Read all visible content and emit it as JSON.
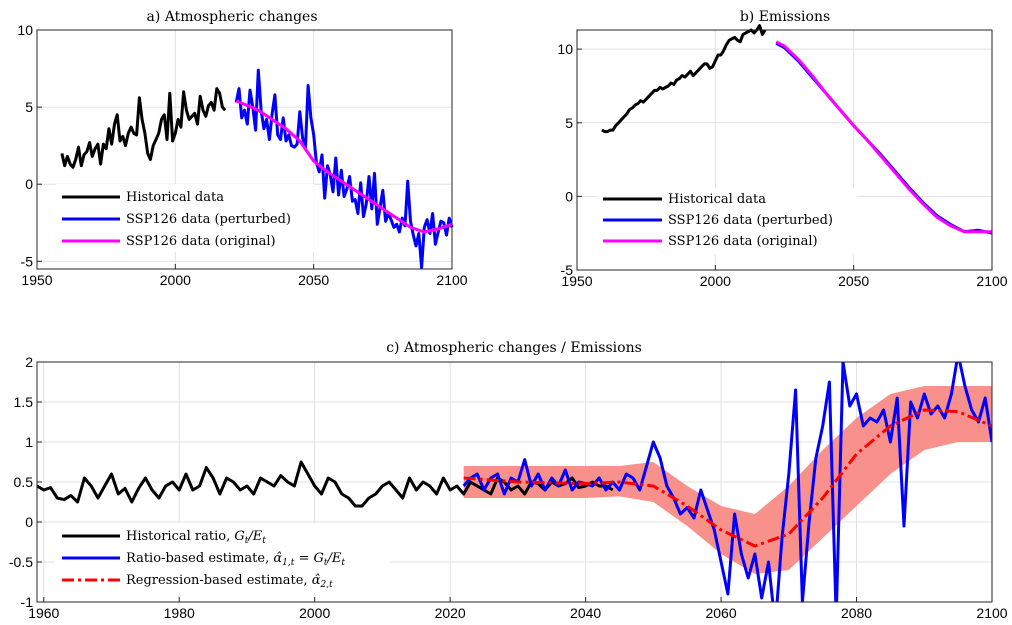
{
  "chart_data": [
    {
      "id": "a",
      "type": "line",
      "title": "a) Atmospheric changes",
      "xlim": [
        1950,
        2100
      ],
      "ylim": [
        -5.5,
        10
      ],
      "xticks": [
        1950,
        2000,
        2050,
        2100
      ],
      "yticks": [
        -5,
        0,
        5,
        10
      ],
      "grid": true,
      "legend_position": "bottom-left",
      "series": [
        {
          "name": "Historical data",
          "color": "#000000",
          "x_start": 1959,
          "values": [
            2.0,
            1.2,
            1.8,
            1.3,
            1.1,
            1.6,
            2.4,
            1.2,
            1.9,
            2.1,
            2.7,
            1.8,
            2.3,
            2.6,
            1.3,
            2.6,
            2.3,
            3.6,
            2.6,
            3.9,
            4.5,
            2.8,
            3.1,
            2.5,
            3.3,
            3.7,
            3.3,
            3.2,
            5.6,
            4.2,
            3.3,
            2.0,
            1.6,
            2.5,
            2.9,
            3.3,
            4.2,
            4.5,
            2.9,
            5.9,
            2.8,
            3.3,
            4.2,
            3.7,
            6.0,
            4.8,
            4.2,
            4.4,
            4.6,
            3.9,
            5.7,
            4.8,
            4.4,
            5.1,
            5.3,
            4.8,
            6.2,
            5.9,
            5.0,
            4.8
          ]
        },
        {
          "name": "SSP126 data (perturbed)",
          "color": "#0000ff",
          "x_start": 2022,
          "values": [
            5.3,
            6.2,
            4.3,
            4.8,
            3.9,
            6.1,
            5.0,
            3.5,
            7.4,
            4.8,
            3.6,
            4.2,
            2.9,
            4.6,
            5.8,
            3.2,
            2.9,
            4.3,
            2.8,
            3.2,
            2.5,
            2.4,
            2.6,
            4.7,
            3.0,
            2.3,
            6.4,
            4.3,
            3.2,
            1.4,
            0.8,
            1.9,
            -0.9,
            1.2,
            0.6,
            -0.5,
            1.7,
            -0.7,
            0.9,
            -0.8,
            -0.3,
            0.5,
            -1.1,
            -1.0,
            -1.9,
            0.1,
            -2.1,
            -1.3,
            0.5,
            -1.6,
            0.7,
            -2.6,
            -1.5,
            -0.4,
            -2.4,
            -1.9,
            -2.3,
            -2.8,
            -2.6,
            -3.1,
            -2.2,
            -2.7,
            0.2,
            -2.4,
            -3.3,
            -4.0,
            -3.2,
            -5.4,
            -2.8,
            -2.3,
            -3.2,
            -1.9,
            -3.9,
            -3.1,
            -2.4,
            -2.5,
            -3.3,
            -2.2,
            -2.8
          ]
        },
        {
          "name": "SSP126 data (original)",
          "color": "#ff00ff",
          "x": [
            2022,
            2030,
            2040,
            2045,
            2050,
            2055,
            2060,
            2065,
            2070,
            2075,
            2080,
            2085,
            2090,
            2095,
            2100
          ],
          "values": [
            5.4,
            4.8,
            3.6,
            2.8,
            1.5,
            0.8,
            0.2,
            -0.4,
            -1.0,
            -1.6,
            -2.2,
            -2.8,
            -3.1,
            -2.9,
            -2.6
          ]
        }
      ]
    },
    {
      "id": "b",
      "type": "line",
      "title": "b) Emissions",
      "xlim": [
        1950,
        2100
      ],
      "ylim": [
        -5,
        11.3
      ],
      "xticks": [
        1950,
        2000,
        2050,
        2100
      ],
      "yticks": [
        -5,
        0,
        5,
        10
      ],
      "grid": true,
      "legend_position": "bottom-left",
      "series": [
        {
          "name": "Historical data",
          "color": "#000000",
          "x_start": 1959,
          "values": [
            4.5,
            4.4,
            4.4,
            4.5,
            4.5,
            4.8,
            5.0,
            5.2,
            5.4,
            5.6,
            5.9,
            6.0,
            6.2,
            6.3,
            6.5,
            6.4,
            6.6,
            6.8,
            7.0,
            7.2,
            7.2,
            7.4,
            7.3,
            7.4,
            7.5,
            7.7,
            7.6,
            7.9,
            8.0,
            8.2,
            8.1,
            8.3,
            8.5,
            8.2,
            8.4,
            8.6,
            8.8,
            9.0,
            9.0,
            8.7,
            8.8,
            9.2,
            9.6,
            9.6,
            9.9,
            10.3,
            10.6,
            10.7,
            10.8,
            10.6,
            10.5,
            11.0,
            11.1,
            11.2,
            11.3,
            11.1,
            11.3,
            11.6,
            11.0,
            11.3
          ]
        },
        {
          "name": "SSP126 data (perturbed)",
          "color": "#0000ff",
          "x": [
            2022,
            2025,
            2030,
            2035,
            2040,
            2045,
            2050,
            2055,
            2060,
            2065,
            2070,
            2075,
            2080,
            2085,
            2090,
            2095,
            2100
          ],
          "values": [
            10.4,
            10.1,
            9.2,
            8.1,
            7.0,
            5.9,
            4.8,
            3.8,
            2.8,
            1.7,
            0.6,
            -0.4,
            -1.3,
            -1.9,
            -2.4,
            -2.3,
            -2.5
          ]
        },
        {
          "name": "SSP126 data (original)",
          "color": "#ff00ff",
          "x": [
            2022,
            2025,
            2030,
            2035,
            2040,
            2045,
            2050,
            2055,
            2060,
            2065,
            2070,
            2075,
            2080,
            2085,
            2090,
            2095,
            2100
          ],
          "values": [
            10.5,
            10.2,
            9.3,
            8.2,
            7.0,
            5.9,
            4.8,
            3.8,
            2.7,
            1.6,
            0.5,
            -0.5,
            -1.4,
            -2.0,
            -2.4,
            -2.4,
            -2.4
          ]
        }
      ]
    },
    {
      "id": "c",
      "type": "line",
      "title": "c) Atmospheric changes / Emissions",
      "xlim": [
        1959,
        2100
      ],
      "ylim": [
        -1,
        2
      ],
      "xticks": [
        1960,
        1980,
        2000,
        2020,
        2040,
        2060,
        2080,
        2100
      ],
      "yticks": [
        -1,
        -0.5,
        0,
        0.5,
        1,
        1.5,
        2
      ],
      "grid": true,
      "legend_position": "bottom-left",
      "band": {
        "color": "#f8918b",
        "x": [
          2022,
          2030,
          2040,
          2045,
          2050,
          2055,
          2060,
          2065,
          2070,
          2075,
          2080,
          2085,
          2090,
          2095,
          2100
        ],
        "lower": [
          0.3,
          0.3,
          0.3,
          0.32,
          0.25,
          -0.05,
          -0.4,
          -0.65,
          -0.6,
          -0.2,
          0.2,
          0.6,
          0.9,
          1.0,
          1.0
        ],
        "upper": [
          0.7,
          0.7,
          0.7,
          0.7,
          0.75,
          0.45,
          0.2,
          0.1,
          0.45,
          0.9,
          1.3,
          1.6,
          1.7,
          1.7,
          1.7
        ]
      },
      "series": [
        {
          "name": "Historical ratio, G_t/E_t",
          "label_main": "Historical ratio, ",
          "label_math": "G",
          "label_sub": "t",
          "label_tail": "/E",
          "label_sub2": "t",
          "color": "#000000",
          "x_start": 1959,
          "values": [
            0.45,
            0.4,
            0.43,
            0.3,
            0.28,
            0.33,
            0.25,
            0.55,
            0.45,
            0.3,
            0.45,
            0.6,
            0.35,
            0.42,
            0.25,
            0.42,
            0.55,
            0.4,
            0.3,
            0.45,
            0.5,
            0.4,
            0.6,
            0.4,
            0.45,
            0.68,
            0.55,
            0.35,
            0.55,
            0.5,
            0.4,
            0.45,
            0.35,
            0.55,
            0.5,
            0.45,
            0.58,
            0.5,
            0.45,
            0.75,
            0.6,
            0.45,
            0.35,
            0.55,
            0.5,
            0.35,
            0.3,
            0.2,
            0.2,
            0.3,
            0.35,
            0.45,
            0.5,
            0.4,
            0.3,
            0.55,
            0.4,
            0.5,
            0.45,
            0.35,
            0.55,
            0.4,
            0.45,
            0.35,
            0.5,
            0.45,
            0.4,
            0.35,
            0.55,
            0.5,
            0.4,
            0.45,
            0.35,
            0.5,
            0.48,
            0.4,
            0.5,
            0.45,
            0.48,
            0.55,
            0.43,
            0.45,
            0.5,
            0.45,
            0.45,
            0.4
          ]
        },
        {
          "name": "Ratio-based estimate, α̂_{1,t} = G_t/E_t",
          "color": "#0000ff",
          "x": [
            2022,
            2023,
            2024,
            2025,
            2026,
            2027,
            2028,
            2029,
            2030,
            2031,
            2032,
            2033,
            2034,
            2035,
            2036,
            2037,
            2038,
            2039,
            2040,
            2041,
            2042,
            2043,
            2044,
            2045,
            2046,
            2047,
            2048,
            2049,
            2050,
            2051,
            2052,
            2053,
            2054,
            2055,
            2056,
            2057,
            2058,
            2059,
            2060,
            2061,
            2062,
            2063,
            2064,
            2065,
            2066,
            2067,
            2068,
            2069,
            2070,
            2071,
            2072,
            2073,
            2074,
            2075,
            2076,
            2077,
            2078,
            2079,
            2080,
            2081,
            2082,
            2083,
            2084,
            2085,
            2086,
            2087,
            2088,
            2089,
            2090,
            2091,
            2092,
            2093,
            2094,
            2095,
            2096,
            2097,
            2098,
            2099,
            2100
          ],
          "values": [
            0.45,
            0.55,
            0.6,
            0.4,
            0.55,
            0.6,
            0.35,
            0.55,
            0.5,
            0.78,
            0.45,
            0.6,
            0.4,
            0.55,
            0.45,
            0.65,
            0.4,
            0.5,
            0.48,
            0.45,
            0.55,
            0.4,
            0.5,
            0.4,
            0.6,
            0.55,
            0.4,
            0.7,
            1.0,
            0.8,
            0.45,
            0.3,
            0.1,
            0.18,
            0.05,
            0.4,
            0.15,
            -0.1,
            -0.5,
            -0.9,
            0.1,
            -0.4,
            -0.7,
            -0.4,
            -0.95,
            -0.5,
            -1.3,
            -0.2,
            0.6,
            1.65,
            -1.0,
            0.0,
            0.8,
            1.2,
            1.75,
            -1.2,
            2.0,
            1.45,
            1.6,
            1.2,
            1.3,
            1.25,
            1.4,
            1.0,
            1.55,
            -0.05,
            1.5,
            1.3,
            1.6,
            1.35,
            1.45,
            1.3,
            1.6,
            2.1,
            1.7,
            1.4,
            1.25,
            1.55,
            1.0
          ]
        },
        {
          "name": "Regression-based estimate, α̂_{2,t}",
          "color": "#ff0000",
          "dash": true,
          "x": [
            2022,
            2030,
            2040,
            2045,
            2050,
            2055,
            2060,
            2065,
            2070,
            2075,
            2080,
            2085,
            2090,
            2095,
            2100
          ],
          "values": [
            0.55,
            0.5,
            0.48,
            0.5,
            0.45,
            0.2,
            -0.1,
            -0.3,
            -0.15,
            0.3,
            0.85,
            1.2,
            1.4,
            1.38,
            1.2
          ]
        }
      ]
    }
  ],
  "legend_c": {
    "hist_main": "Historical ratio, ",
    "hist_g": "G",
    "hist_t": "t",
    "hist_slash": "/E",
    "hist_t2": "t",
    "ratio_main": "Ratio-based estimate, ",
    "ratio_alpha": "α̂",
    "ratio_sub": "1,t",
    "ratio_eq": " = G",
    "ratio_t": "t",
    "ratio_slash": "/E",
    "ratio_t2": "t",
    "reg_main": "Regression-based estimate, ",
    "reg_alpha": "α̂",
    "reg_sub": "2,t"
  }
}
